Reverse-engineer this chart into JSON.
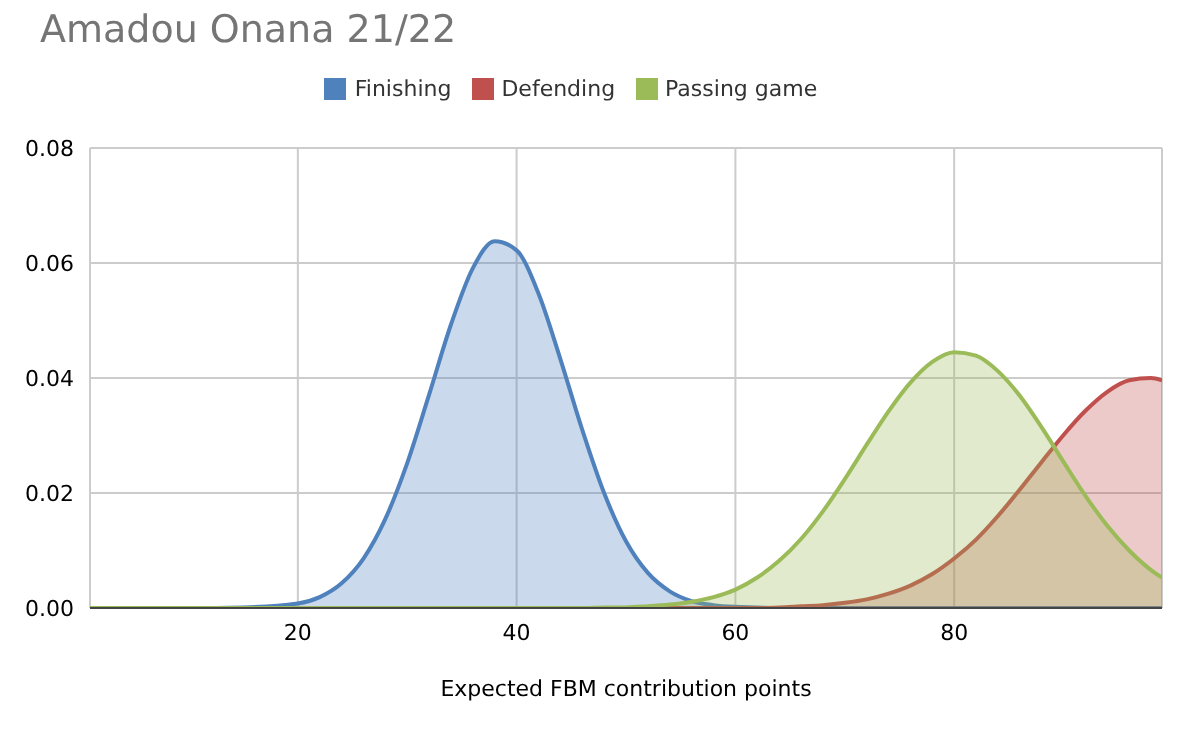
{
  "chart_data": {
    "type": "area",
    "title": "Amadou Onana 21/22",
    "xlabel": "Expected FBM contribution points",
    "x": [
      1,
      5,
      10,
      15,
      20,
      22,
      24,
      26,
      28,
      30,
      32,
      34,
      36,
      38,
      40,
      42,
      44,
      46,
      48,
      50,
      52,
      54,
      56,
      58,
      60,
      62,
      64,
      66,
      68,
      70,
      72,
      74,
      76,
      78,
      80,
      82,
      84,
      86,
      88,
      90,
      92,
      94,
      96,
      98,
      99
    ],
    "series": [
      {
        "name": "Finishing",
        "color": "#4f81bd",
        "values": [
          0,
          0,
          0,
          0.0001,
          0.0008,
          0.0019,
          0.0043,
          0.0086,
          0.0155,
          0.0252,
          0.0371,
          0.0493,
          0.0591,
          0.0638,
          0.0622,
          0.0547,
          0.0433,
          0.031,
          0.02,
          0.0116,
          0.0061,
          0.0029,
          0.0012,
          0.0005,
          0.0002,
          0.0001,
          0,
          0,
          0,
          0,
          0,
          0,
          0,
          0,
          0,
          0,
          0,
          0,
          0,
          0,
          0,
          0,
          0,
          0,
          0
        ]
      },
      {
        "name": "Defending",
        "color": "#c0504d",
        "values": [
          0,
          0,
          0,
          0,
          0,
          0,
          0,
          0,
          0,
          0,
          0,
          0,
          0,
          0,
          0,
          0,
          0,
          0,
          0,
          0,
          0,
          0,
          0,
          0,
          0,
          0,
          0.0001,
          0.0003,
          0.0005,
          0.0009,
          0.0015,
          0.0025,
          0.0039,
          0.0059,
          0.0086,
          0.0119,
          0.016,
          0.0206,
          0.0254,
          0.0301,
          0.0343,
          0.0376,
          0.0396,
          0.04,
          0.0396
        ]
      },
      {
        "name": "Passing game",
        "color": "#9bbb59",
        "values": [
          0,
          0,
          0,
          0,
          0,
          0,
          0,
          0,
          0,
          0,
          0,
          0,
          0,
          0,
          0,
          0,
          0,
          0,
          0.0001,
          0.0001,
          0.0003,
          0.0006,
          0.0011,
          0.0019,
          0.0032,
          0.0053,
          0.0082,
          0.012,
          0.0168,
          0.0224,
          0.0284,
          0.0342,
          0.0392,
          0.0428,
          0.0445,
          0.0439,
          0.0412,
          0.0369,
          0.0314,
          0.0254,
          0.0195,
          0.0143,
          0.01,
          0.0066,
          0.0053
        ]
      }
    ],
    "xlim": [
      1,
      99
    ],
    "xticks": [
      20,
      40,
      60,
      80
    ],
    "ylim": [
      0,
      0.08
    ],
    "yticks": [
      {
        "value": 0,
        "label": "0.00"
      },
      {
        "value": 0.02,
        "label": "0.02"
      },
      {
        "value": 0.04,
        "label": "0.04"
      },
      {
        "value": 0.06,
        "label": "0.06"
      },
      {
        "value": 0.08,
        "label": "0.08"
      }
    ],
    "grid": true,
    "legend": "top",
    "marker": "none",
    "line_style": "solid"
  }
}
